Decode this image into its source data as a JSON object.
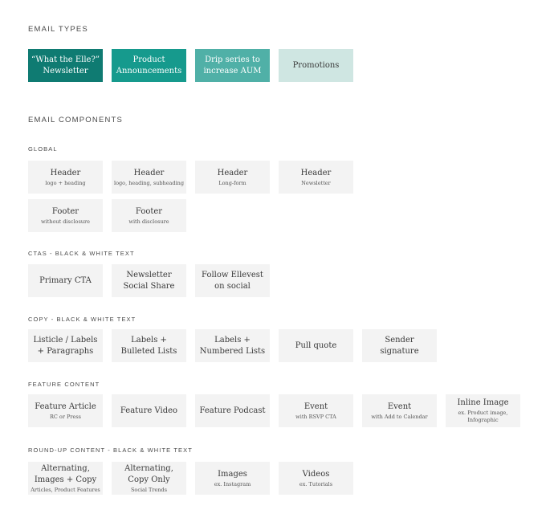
{
  "sections": {
    "email_types": "EMAIL TYPES",
    "email_components": "EMAIL COMPONENTS"
  },
  "colors": {
    "type_1": "#0f7b72",
    "type_2": "#169a8d",
    "type_3": "#50b0a7",
    "type_4": "#cfe6e2",
    "card_bg": "#f3f3f3"
  },
  "email_types": [
    {
      "title": "“What the Elle?” Newsletter"
    },
    {
      "title": "Product Announcements"
    },
    {
      "title": "Drip series to increase AUM"
    },
    {
      "title": "Promotions"
    }
  ],
  "global": {
    "heading": "GLOBAL",
    "cards": [
      {
        "title": "Header",
        "sub": "logo + heading"
      },
      {
        "title": "Header",
        "sub": "logo, heading, subheading"
      },
      {
        "title": "Header",
        "sub": "Long-form"
      },
      {
        "title": "Header",
        "sub": "Newsletter"
      },
      {
        "title": "Footer",
        "sub": "without disclosure"
      },
      {
        "title": "Footer",
        "sub": "with disclosure"
      }
    ]
  },
  "ctas": {
    "heading": "CTAS - BLACK & WHITE TEXT",
    "cards": [
      {
        "title": "Primary CTA"
      },
      {
        "title": "Newsletter Social Share"
      },
      {
        "title": "Follow Ellevest on social"
      }
    ]
  },
  "copy": {
    "heading": "COPY - BLACK & WHITE TEXT",
    "cards": [
      {
        "title": "Listicle / Labels + Paragraphs"
      },
      {
        "title": "Labels + Bulleted Lists"
      },
      {
        "title": "Labels + Numbered Lists"
      },
      {
        "title": "Pull quote"
      },
      {
        "title": "Sender signature"
      }
    ]
  },
  "feature": {
    "heading": "FEATURE CONTENT",
    "cards": [
      {
        "title": "Feature Article",
        "sub": "RC or Press"
      },
      {
        "title": "Feature Video"
      },
      {
        "title": "Feature Podcast"
      },
      {
        "title": "Event",
        "sub": "with RSVP CTA"
      },
      {
        "title": "Event",
        "sub": "with Add to Calendar"
      },
      {
        "title": "Inline Image",
        "sub": "ex. Product image, Infographic"
      }
    ]
  },
  "roundup": {
    "heading": "ROUND-UP CONTENT - BLACK & WHITE TEXT",
    "cards": [
      {
        "title": "Alternating, Images + Copy",
        "sub": "Articles, Product Features"
      },
      {
        "title": "Alternating, Copy Only",
        "sub": "Social Trends"
      },
      {
        "title": "Images",
        "sub": "ex. Instagram"
      },
      {
        "title": "Videos",
        "sub": "ex. Tutorials"
      }
    ]
  }
}
